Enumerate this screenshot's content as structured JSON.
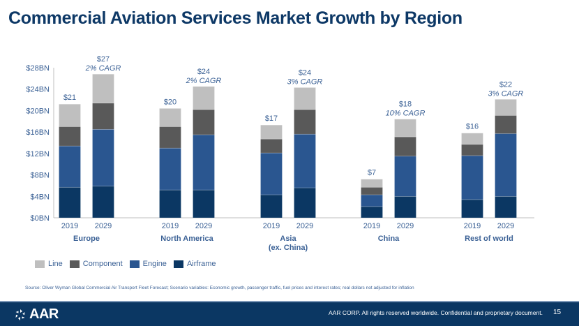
{
  "title": "Commercial Aviation Services Market Growth by Region",
  "legend": [
    {
      "label": "Line",
      "color": "#bfbfbf"
    },
    {
      "label": "Component",
      "color": "#595959"
    },
    {
      "label": "Engine",
      "color": "#2a5690"
    },
    {
      "label": "Airframe",
      "color": "#0b3763"
    }
  ],
  "source": "Source: Oliver Wyman Global Commercial Air Transport Fleet Forecast;  Scenario variables: Economic growth, passenger traffic, fuel prices and interest rates; real dollars not adjusted for inflation",
  "footer": {
    "logo_text": "AAR",
    "copyright": "AAR CORP. All rights reserved worldwide. Confidential and proprietary document.",
    "page_number": "15"
  },
  "chart_data": {
    "type": "bar",
    "stacked": true,
    "title": "Commercial Aviation Services Market Growth by Region",
    "ylabel": "",
    "xlabel": "",
    "ylim": [
      0,
      28
    ],
    "yticks": [
      "$0BN",
      "$4BN",
      "$8BN",
      "$12BN",
      "$16BN",
      "$20BN",
      "$24BN",
      "$28BN"
    ],
    "ytick_values": [
      0,
      4,
      8,
      12,
      16,
      20,
      24,
      28
    ],
    "grid": false,
    "legend_position": "bottom-left",
    "series_order": [
      "Airframe",
      "Engine",
      "Component",
      "Line"
    ],
    "groups": [
      {
        "region": "Europe",
        "region_line2": "",
        "bars": [
          {
            "year": "2019",
            "total_label": "$21",
            "cagr_label": "",
            "Airframe": 5.7,
            "Engine": 7.7,
            "Component": 3.6,
            "Line": 4.2
          },
          {
            "year": "2029",
            "total_label": "$27",
            "cagr_label": "2% CAGR",
            "Airframe": 5.9,
            "Engine": 10.6,
            "Component": 4.9,
            "Line": 5.4
          }
        ]
      },
      {
        "region": "North America",
        "region_line2": "",
        "bars": [
          {
            "year": "2019",
            "total_label": "$20",
            "cagr_label": "",
            "Airframe": 5.2,
            "Engine": 7.8,
            "Component": 4.0,
            "Line": 3.4
          },
          {
            "year": "2029",
            "total_label": "$24",
            "cagr_label": "2% CAGR",
            "Airframe": 5.2,
            "Engine": 10.3,
            "Component": 4.7,
            "Line": 4.3
          }
        ]
      },
      {
        "region": "Asia",
        "region_line2": "(ex. China)",
        "bars": [
          {
            "year": "2019",
            "total_label": "$17",
            "cagr_label": "",
            "Airframe": 4.3,
            "Engine": 7.8,
            "Component": 2.6,
            "Line": 2.6
          },
          {
            "year": "2029",
            "total_label": "$24",
            "cagr_label": "3% CAGR",
            "Airframe": 5.6,
            "Engine": 10.0,
            "Component": 4.6,
            "Line": 4.1
          }
        ]
      },
      {
        "region": "China",
        "region_line2": "",
        "bars": [
          {
            "year": "2019",
            "total_label": "$7",
            "cagr_label": "",
            "Airframe": 2.1,
            "Engine": 2.2,
            "Component": 1.4,
            "Line": 1.5
          },
          {
            "year": "2029",
            "total_label": "$18",
            "cagr_label": "10% CAGR",
            "Airframe": 4.0,
            "Engine": 7.5,
            "Component": 3.6,
            "Line": 3.3
          }
        ]
      },
      {
        "region": "Rest of world",
        "region_line2": "",
        "bars": [
          {
            "year": "2019",
            "total_label": "$16",
            "cagr_label": "",
            "Airframe": 3.4,
            "Engine": 8.2,
            "Component": 2.1,
            "Line": 2.1
          },
          {
            "year": "2029",
            "total_label": "$22",
            "cagr_label": "3% CAGR",
            "Airframe": 4.0,
            "Engine": 11.7,
            "Component": 3.4,
            "Line": 3.0
          }
        ]
      }
    ]
  }
}
